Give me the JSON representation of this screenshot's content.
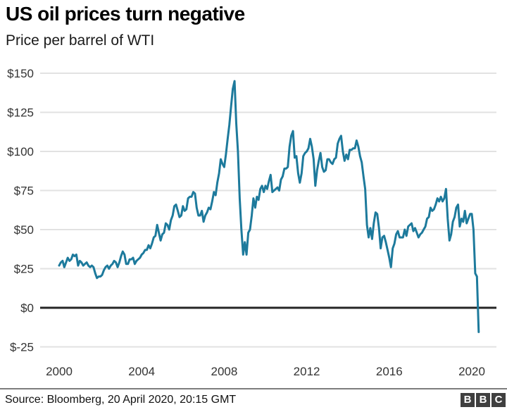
{
  "header": {
    "title": "US oil prices turn negative",
    "subtitle": "Price per barrel of WTI"
  },
  "footer": {
    "source": "Source: Bloomberg, 20 April 2020, 20:15 GMT",
    "logo_blocks": [
      "B",
      "B",
      "C"
    ]
  },
  "chart_data": {
    "type": "line",
    "title": "US oil prices turn negative",
    "subtitle": "Price per barrel of WTI",
    "source": "Source: Bloomberg, 20 April 2020, 20:15 GMT",
    "xlabel": "",
    "ylabel": "",
    "ylim": [
      -25,
      150
    ],
    "x_range": [
      2000,
      2020.35
    ],
    "grid": "horizontal",
    "legend": "none",
    "line_color": "#1d7a9c",
    "zero_line_color": "#262626",
    "grid_color": "#e2e2e2",
    "tick_color": "#333333",
    "yticks": [
      {
        "label": "$150",
        "value": 150
      },
      {
        "label": "$125",
        "value": 125
      },
      {
        "label": "$100",
        "value": 100
      },
      {
        "label": "$75",
        "value": 75
      },
      {
        "label": "$50",
        "value": 50
      },
      {
        "label": "$25",
        "value": 25
      },
      {
        "label": "$0",
        "value": 0
      },
      {
        "label": "$-25",
        "value": -25
      }
    ],
    "xticks": [
      {
        "label": "2000",
        "value": 2000
      },
      {
        "label": "2004",
        "value": 2004
      },
      {
        "label": "2008",
        "value": 2008
      },
      {
        "label": "2012",
        "value": 2012
      },
      {
        "label": "2016",
        "value": 2016
      },
      {
        "label": "2020",
        "value": 2020
      }
    ],
    "series": [
      {
        "name": "WTI crude oil price, USD per barrel",
        "interval": "monthly",
        "start_year": 2000,
        "values": [
          27,
          29,
          30,
          26,
          29,
          32,
          30,
          31,
          34,
          33,
          34,
          27,
          30,
          29,
          27,
          28,
          29,
          27,
          26,
          27,
          26,
          22,
          19,
          20,
          20,
          21,
          24,
          26,
          27,
          25,
          27,
          28,
          30,
          29,
          26,
          29,
          33,
          36,
          34,
          28,
          28,
          31,
          31,
          32,
          28,
          30,
          31,
          32,
          34,
          35,
          37,
          37,
          40,
          38,
          41,
          45,
          46,
          53,
          48,
          43,
          47,
          48,
          54,
          53,
          50,
          56,
          59,
          65,
          66,
          62,
          58,
          59,
          65,
          62,
          63,
          70,
          71,
          71,
          74,
          73,
          64,
          59,
          59,
          62,
          55,
          59,
          61,
          64,
          63,
          68,
          74,
          72,
          80,
          86,
          95,
          92,
          90,
          98,
          108,
          117,
          129,
          140,
          145,
          118,
          100,
          70,
          50,
          34,
          42,
          34,
          48,
          50,
          59,
          70,
          64,
          71,
          69,
          76,
          78,
          74,
          78,
          76,
          81,
          85,
          74,
          75,
          76,
          77,
          75,
          82,
          84,
          89,
          89,
          90,
          103,
          110,
          113,
          96,
          97,
          86,
          80,
          86,
          97,
          99,
          100,
          102,
          108,
          103,
          95,
          78,
          88,
          94,
          99,
          90,
          87,
          88,
          95,
          95,
          93,
          92,
          95,
          96,
          105,
          108,
          110,
          100,
          94,
          98,
          95,
          101,
          101,
          102,
          102,
          107,
          103,
          97,
          93,
          84,
          76,
          53,
          45,
          51,
          44,
          54,
          61,
          60,
          51,
          38,
          45,
          46,
          42,
          37,
          32,
          26,
          38,
          41,
          47,
          49,
          45,
          45,
          45,
          50,
          46,
          52,
          53,
          54,
          49,
          51,
          48,
          45,
          47,
          48,
          50,
          52,
          57,
          58,
          64,
          62,
          63,
          66,
          70,
          68,
          71,
          68,
          70,
          76,
          57,
          43,
          47,
          55,
          58,
          64,
          66,
          52,
          57,
          55,
          62,
          54,
          57,
          60,
          60,
          50,
          22,
          20,
          -15.5
        ]
      }
    ]
  }
}
